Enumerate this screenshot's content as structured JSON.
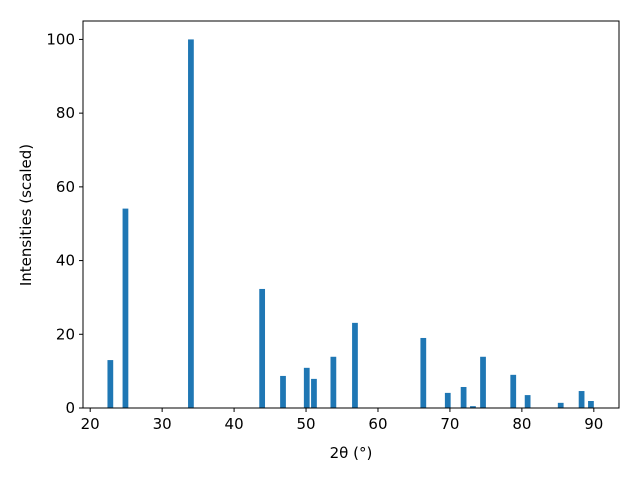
{
  "chart_data": {
    "type": "bar",
    "x_label": "2θ (°)",
    "y_label": "Intensities (scaled)",
    "x": [
      22.8,
      24.9,
      34.0,
      43.9,
      46.8,
      50.1,
      51.1,
      53.8,
      56.8,
      66.3,
      69.7,
      71.9,
      73.2,
      74.6,
      78.8,
      80.8,
      85.4,
      88.3,
      89.6
    ],
    "values": [
      13.0,
      54.1,
      100,
      32.3,
      8.7,
      10.9,
      7.9,
      13.9,
      23.1,
      19.0,
      4.1,
      5.7,
      0.5,
      13.9,
      9.0,
      3.5,
      1.4,
      4.6,
      1.9
    ],
    "color": "#1f77b4",
    "xlim": [
      19.0,
      93.5
    ],
    "xticks": [
      20,
      30,
      40,
      50,
      60,
      70,
      80,
      90
    ],
    "ylim": [
      0,
      105
    ],
    "yticks": [
      0,
      20,
      40,
      60,
      80,
      100
    ],
    "grid": false
  }
}
